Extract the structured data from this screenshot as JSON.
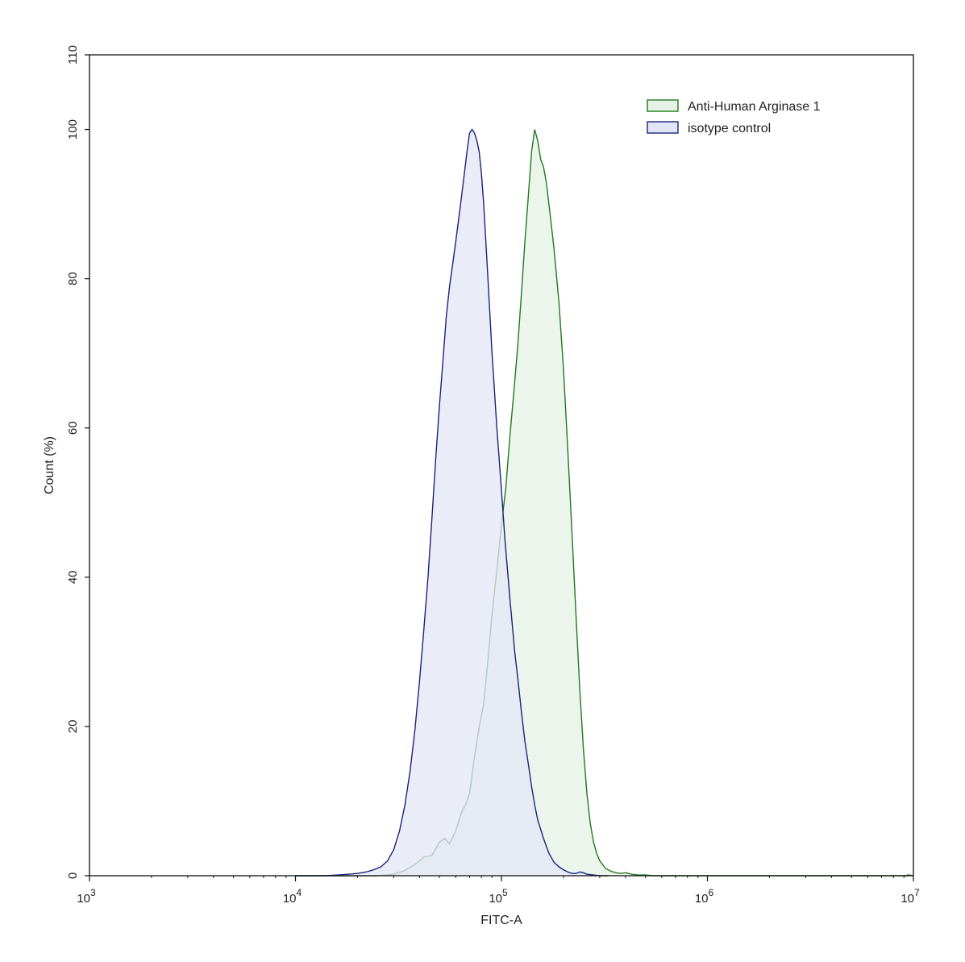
{
  "chart_data": {
    "type": "area",
    "title": "",
    "xlabel": "FITC-A",
    "ylabel": "Count  (%)",
    "xscale": "log",
    "xlim": [
      1000,
      10000000
    ],
    "ylim": [
      0,
      110
    ],
    "x_ticks": [
      {
        "value": 1000,
        "base": "10",
        "exp": "3"
      },
      {
        "value": 10000,
        "base": "10",
        "exp": "4"
      },
      {
        "value": 100000,
        "base": "10",
        "exp": "5"
      },
      {
        "value": 1000000,
        "base": "10",
        "exp": "6"
      },
      {
        "value": 10000000,
        "base": "10",
        "exp": "7"
      }
    ],
    "y_ticks": [
      "0",
      "20",
      "40",
      "60",
      "80",
      "100",
      "110"
    ],
    "grid": false,
    "legend_position": "top-right",
    "series": [
      {
        "name": "Anti-Human Arginase 1",
        "stroke": "#1f7a1f",
        "fill": "#e6f2e6",
        "x": [
          10000,
          18000,
          25000,
          30000,
          34000,
          38000,
          42000,
          46000,
          50000,
          53000,
          56000,
          60000,
          64000,
          67000,
          70000,
          74000,
          78000,
          82000,
          86000,
          90000,
          95000,
          100000,
          105000,
          110000,
          115000,
          120000,
          125000,
          130000,
          135000,
          140000,
          145000,
          150000,
          155000,
          160000,
          165000,
          170000,
          175000,
          180000,
          190000,
          200000,
          210000,
          220000,
          230000,
          240000,
          250000,
          260000,
          270000,
          280000,
          290000,
          300000,
          320000,
          340000,
          360000,
          380000,
          400000,
          430000,
          460000,
          500000,
          550000,
          600000,
          700000,
          800000,
          1000000,
          9000000,
          9500000,
          10000000
        ],
        "y": [
          0,
          0,
          0,
          0.2,
          0.7,
          1.5,
          2.5,
          2.7,
          4.5,
          5.0,
          4.3,
          6.0,
          8.5,
          9.5,
          11.0,
          16.0,
          20.0,
          23.0,
          29.0,
          35.0,
          41.0,
          47.0,
          52.0,
          59.0,
          65.0,
          71.0,
          78.0,
          85.0,
          91.0,
          97.0,
          100.0,
          98.5,
          96.0,
          95.0,
          93.0,
          90.0,
          87.0,
          84.0,
          77.0,
          68.0,
          57.0,
          46.0,
          35.0,
          25.0,
          17.0,
          11.0,
          7.0,
          4.5,
          3.0,
          2.0,
          1.0,
          0.6,
          0.4,
          0.3,
          0.4,
          0.2,
          0.1,
          0.1,
          0,
          0,
          0,
          0,
          0,
          0,
          0.1,
          0
        ]
      },
      {
        "name": "isotype control",
        "stroke": "#1a237e",
        "fill": "#e3e5f6",
        "x": [
          10000,
          14000,
          16000,
          18000,
          20000,
          22000,
          24000,
          26000,
          28000,
          30000,
          32000,
          34000,
          36000,
          38000,
          40000,
          42000,
          44000,
          46000,
          48000,
          50000,
          52000,
          54000,
          56000,
          58000,
          60000,
          62000,
          64000,
          66000,
          68000,
          70000,
          72000,
          74000,
          76000,
          78000,
          80000,
          82000,
          84000,
          86000,
          88000,
          90000,
          92000,
          95000,
          98000,
          101000,
          104000,
          107000,
          110000,
          113000,
          116000,
          120000,
          125000,
          130000,
          135000,
          140000,
          145000,
          150000,
          160000,
          170000,
          180000,
          190000,
          200000,
          210000,
          220000,
          230000,
          240000,
          250000,
          260000,
          280000,
          300000,
          330000
        ],
        "y": [
          0,
          0,
          0.1,
          0.2,
          0.3,
          0.5,
          0.8,
          1.2,
          2.0,
          3.5,
          6.0,
          9.5,
          14.0,
          19.5,
          26.0,
          33.0,
          40.0,
          48.0,
          56.0,
          63.0,
          69.0,
          75.0,
          79.0,
          82.0,
          85.0,
          88.0,
          91.0,
          94.0,
          97.0,
          99.5,
          100.0,
          99.5,
          98.5,
          97.0,
          94.0,
          90.0,
          85.0,
          80.0,
          75.0,
          70.0,
          66.0,
          60.0,
          55.0,
          50.0,
          45.0,
          41.0,
          37.0,
          33.5,
          30.0,
          26.5,
          22.0,
          18.0,
          15.0,
          12.0,
          9.5,
          7.5,
          5.0,
          3.0,
          1.8,
          1.2,
          0.8,
          0.5,
          0.3,
          0.3,
          0.5,
          0.4,
          0.2,
          0.1,
          0,
          0
        ]
      }
    ]
  }
}
